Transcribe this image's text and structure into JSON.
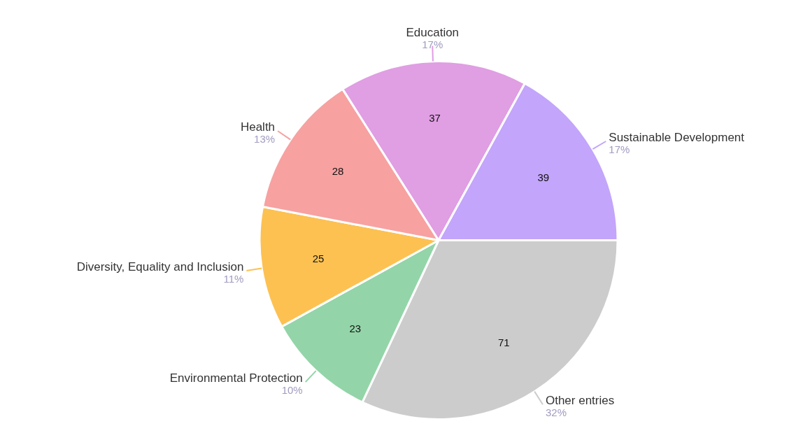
{
  "chart_data": {
    "type": "pie",
    "categories": [
      "Other entries",
      "Environmental Protection",
      "Diversity, Equality and Inclusion",
      "Health",
      "Education",
      "Sustainable Development"
    ],
    "values": [
      32,
      10,
      11,
      13,
      17,
      17
    ],
    "colors": [
      "#cccccc",
      "#93d5a8",
      "#fdc152",
      "#f7a1a1",
      "#e09ee3",
      "#c3a5fb"
    ],
    "value_labels": [
      "32%",
      "10%",
      "11%",
      "13%",
      "17%",
      "17%"
    ],
    "annotations": [
      {
        "text": "71",
        "x": "Other entries"
      },
      {
        "text": "23",
        "x": "Environmental Protection"
      },
      {
        "text": "25",
        "x": "Diversity, Equality and Inclusion"
      },
      {
        "text": "28",
        "x": "Health"
      },
      {
        "text": "37",
        "x": "Education"
      },
      {
        "text": "39",
        "x": "Sustainable Development"
      }
    ],
    "legend": false
  }
}
